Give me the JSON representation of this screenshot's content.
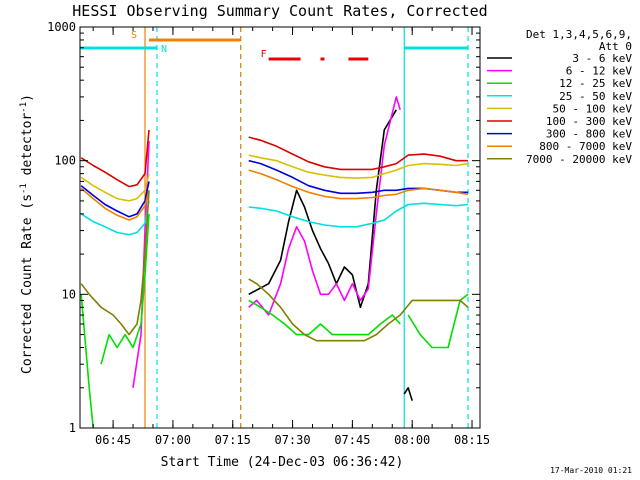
{
  "chart_data": {
    "type": "line",
    "title": "HESSI Observing Summary Count Rates, Corrected",
    "xlabel": "Start Time (24-Dec-03 06:36:42)",
    "ylabel": "Corrected Count Rate (s",
    "ylabel_sup1": "-1",
    "ylabel_mid": " detector",
    "ylabel_sup2": "-1",
    "ylabel_end": ")",
    "footer": "17-Mar-2010 01:21",
    "y_scale": "log",
    "ylim": [
      1,
      1000
    ],
    "xlim": [
      "06:36:42",
      "08:17:00"
    ],
    "x_ticks": [
      "06:45",
      "07:00",
      "07:15",
      "07:30",
      "07:45",
      "08:00",
      "08:15"
    ],
    "y_ticks": [
      "1",
      "10",
      "100",
      "1000"
    ],
    "legend_title": [
      "Det 1,3,4,5,6,9,",
      "Att 0"
    ],
    "legend_position": "right",
    "series": [
      {
        "name": "3 - 6 keV",
        "color": "#000000",
        "segments": [
          [
            [
              "07:19",
              10
            ],
            [
              "07:24",
              12
            ],
            [
              "07:27",
              18
            ],
            [
              "07:29",
              35
            ],
            [
              "07:31",
              60
            ],
            [
              "07:33",
              45
            ],
            [
              "07:35",
              30
            ],
            [
              "07:37",
              22
            ],
            [
              "07:39",
              17
            ],
            [
              "07:41",
              12
            ],
            [
              "07:43",
              16
            ],
            [
              "07:45",
              14
            ],
            [
              "07:47",
              8
            ],
            [
              "07:49",
              12
            ],
            [
              "07:51",
              60
            ],
            [
              "07:53",
              170
            ],
            [
              "07:56",
              240
            ]
          ],
          [
            [
              "07:58",
              1.8
            ],
            [
              "07:59",
              2
            ],
            [
              "08:00",
              1.6
            ]
          ]
        ]
      },
      {
        "name": "6 - 12 keV",
        "color": "#ff00ff",
        "segments": [
          [
            [
              "06:50",
              2
            ],
            [
              "06:52",
              5
            ],
            [
              "06:53",
              30
            ],
            [
              "06:54",
              140
            ]
          ],
          [
            [
              "07:19",
              8
            ],
            [
              "07:21",
              9
            ],
            [
              "07:24",
              7
            ],
            [
              "07:27",
              12
            ],
            [
              "07:29",
              22
            ],
            [
              "07:31",
              32
            ],
            [
              "07:33",
              25
            ],
            [
              "07:35",
              15
            ],
            [
              "07:37",
              10
            ],
            [
              "07:39",
              10
            ],
            [
              "07:41",
              12
            ],
            [
              "07:43",
              9
            ],
            [
              "07:45",
              12
            ],
            [
              "07:47",
              9
            ],
            [
              "07:49",
              11
            ],
            [
              "07:51",
              40
            ],
            [
              "07:53",
              130
            ],
            [
              "07:56",
              300
            ],
            [
              "07:57",
              240
            ]
          ]
        ]
      },
      {
        "name": "12 - 25 keV",
        "color": "#00e000",
        "segments": [
          [
            [
              "06:37",
              10
            ],
            [
              "06:39",
              2
            ],
            [
              "06:40",
              1
            ]
          ],
          [
            [
              "06:42",
              3
            ],
            [
              "06:44",
              5
            ],
            [
              "06:46",
              4
            ],
            [
              "06:48",
              5
            ],
            [
              "06:50",
              4
            ],
            [
              "06:52",
              6
            ],
            [
              "06:53",
              14
            ],
            [
              "06:54",
              40
            ]
          ],
          [
            [
              "07:19",
              9
            ],
            [
              "07:22",
              8
            ],
            [
              "07:25",
              7
            ],
            [
              "07:28",
              6
            ],
            [
              "07:31",
              5
            ],
            [
              "07:34",
              5
            ],
            [
              "07:37",
              6
            ],
            [
              "07:40",
              5
            ],
            [
              "07:43",
              5
            ],
            [
              "07:46",
              5
            ],
            [
              "07:49",
              5
            ],
            [
              "07:52",
              6
            ],
            [
              "07:55",
              7
            ],
            [
              "07:57",
              6
            ]
          ],
          [
            [
              "07:59",
              7
            ],
            [
              "08:02",
              5
            ],
            [
              "08:05",
              4
            ],
            [
              "08:09",
              4
            ],
            [
              "08:12",
              9
            ],
            [
              "08:14",
              10
            ]
          ]
        ]
      },
      {
        "name": "25 - 50 keV",
        "color": "#00e0e0",
        "segments": [
          [
            [
              "06:37",
              40
            ],
            [
              "06:40",
              35
            ],
            [
              "06:43",
              32
            ],
            [
              "06:46",
              29
            ],
            [
              "06:49",
              28
            ],
            [
              "06:51",
              29
            ],
            [
              "06:53",
              34
            ],
            [
              "06:54",
              50
            ]
          ],
          [
            [
              "07:19",
              45
            ],
            [
              "07:22",
              44
            ],
            [
              "07:26",
              42
            ],
            [
              "07:30",
              38
            ],
            [
              "07:34",
              35
            ],
            [
              "07:38",
              33
            ],
            [
              "07:42",
              32
            ],
            [
              "07:46",
              32
            ],
            [
              "07:50",
              34
            ],
            [
              "07:53",
              36
            ],
            [
              "07:56",
              42
            ],
            [
              "07:59",
              47
            ],
            [
              "08:03",
              48
            ],
            [
              "08:07",
              47
            ],
            [
              "08:11",
              46
            ],
            [
              "08:14",
              47
            ]
          ]
        ]
      },
      {
        "name": "50 - 100 keV",
        "color": "#d8c000",
        "segments": [
          [
            [
              "06:37",
              75
            ],
            [
              "06:40",
              65
            ],
            [
              "06:43",
              58
            ],
            [
              "06:46",
              52
            ],
            [
              "06:49",
              50
            ],
            [
              "06:51",
              52
            ],
            [
              "06:53",
              60
            ],
            [
              "06:54",
              80
            ]
          ],
          [
            [
              "07:19",
              110
            ],
            [
              "07:22",
              105
            ],
            [
              "07:26",
              100
            ],
            [
              "07:30",
              90
            ],
            [
              "07:34",
              82
            ],
            [
              "07:38",
              78
            ],
            [
              "07:42",
              75
            ],
            [
              "07:46",
              74
            ],
            [
              "07:50",
              75
            ],
            [
              "07:53",
              80
            ],
            [
              "07:56",
              85
            ],
            [
              "07:59",
              92
            ],
            [
              "08:03",
              95
            ],
            [
              "08:07",
              94
            ],
            [
              "08:11",
              92
            ],
            [
              "08:14",
              95
            ]
          ]
        ]
      },
      {
        "name": "100 - 300 keV",
        "color": "#dd0000",
        "segments": [
          [
            [
              "06:37",
              105
            ],
            [
              "06:40",
              92
            ],
            [
              "06:43",
              82
            ],
            [
              "06:46",
              72
            ],
            [
              "06:49",
              64
            ],
            [
              "06:51",
              66
            ],
            [
              "06:53",
              80
            ],
            [
              "06:54",
              170
            ]
          ],
          [
            [
              "07:19",
              150
            ],
            [
              "07:22",
              142
            ],
            [
              "07:26",
              128
            ],
            [
              "07:30",
              112
            ],
            [
              "07:34",
              98
            ],
            [
              "07:38",
              90
            ],
            [
              "07:42",
              86
            ],
            [
              "07:46",
              86
            ],
            [
              "07:50",
              86
            ],
            [
              "07:53",
              90
            ],
            [
              "07:56",
              95
            ],
            [
              "07:59",
              110
            ],
            [
              "08:03",
              112
            ],
            [
              "08:07",
              108
            ],
            [
              "08:11",
              100
            ],
            [
              "08:14",
              100
            ]
          ]
        ]
      },
      {
        "name": "300 - 800 keV",
        "color": "#0000dd",
        "segments": [
          [
            [
              "06:37",
              65
            ],
            [
              "06:40",
              55
            ],
            [
              "06:43",
              47
            ],
            [
              "06:46",
              42
            ],
            [
              "06:49",
              38
            ],
            [
              "06:51",
              40
            ],
            [
              "06:53",
              50
            ],
            [
              "06:54",
              70
            ]
          ],
          [
            [
              "07:19",
              100
            ],
            [
              "07:22",
              95
            ],
            [
              "07:26",
              85
            ],
            [
              "07:30",
              75
            ],
            [
              "07:34",
              65
            ],
            [
              "07:38",
              60
            ],
            [
              "07:42",
              57
            ],
            [
              "07:46",
              57
            ],
            [
              "07:50",
              58
            ],
            [
              "07:53",
              60
            ],
            [
              "07:56",
              60
            ],
            [
              "07:59",
              62
            ],
            [
              "08:03",
              62
            ],
            [
              "08:07",
              60
            ],
            [
              "08:11",
              58
            ],
            [
              "08:14",
              58
            ]
          ]
        ]
      },
      {
        "name": "800 - 7000 keV",
        "color": "#f08000",
        "segments": [
          [
            [
              "06:37",
              62
            ],
            [
              "06:40",
              52
            ],
            [
              "06:43",
              44
            ],
            [
              "06:46",
              39
            ],
            [
              "06:49",
              36
            ],
            [
              "06:51",
              38
            ],
            [
              "06:53",
              46
            ],
            [
              "06:54",
              60
            ]
          ],
          [
            [
              "07:19",
              85
            ],
            [
              "07:22",
              80
            ],
            [
              "07:26",
              72
            ],
            [
              "07:30",
              64
            ],
            [
              "07:34",
              58
            ],
            [
              "07:38",
              54
            ],
            [
              "07:42",
              52
            ],
            [
              "07:46",
              52
            ],
            [
              "07:50",
              53
            ],
            [
              "07:53",
              55
            ],
            [
              "07:56",
              56
            ],
            [
              "07:59",
              60
            ],
            [
              "08:03",
              62
            ],
            [
              "08:07",
              60
            ],
            [
              "08:11",
              58
            ],
            [
              "08:14",
              56
            ]
          ]
        ]
      },
      {
        "name": "7000 - 20000 keV",
        "color": "#808000",
        "segments": [
          [
            [
              "06:37",
              12
            ],
            [
              "06:39",
              10
            ],
            [
              "06:42",
              8
            ],
            [
              "06:45",
              7
            ],
            [
              "06:47",
              6
            ],
            [
              "06:49",
              5
            ],
            [
              "06:51",
              6
            ],
            [
              "06:52",
              9
            ],
            [
              "06:53",
              20
            ],
            [
              "06:54",
              60
            ]
          ],
          [
            [
              "07:19",
              13
            ],
            [
              "07:21",
              12
            ],
            [
              "07:24",
              10
            ],
            [
              "07:27",
              8
            ],
            [
              "07:30",
              6
            ],
            [
              "07:33",
              5
            ],
            [
              "07:36",
              4.5
            ],
            [
              "07:40",
              4.5
            ],
            [
              "07:44",
              4.5
            ],
            [
              "07:48",
              4.5
            ],
            [
              "07:51",
              5
            ],
            [
              "07:54",
              6
            ],
            [
              "07:57",
              7
            ],
            [
              "08:00",
              9
            ],
            [
              "08:04",
              9
            ],
            [
              "08:08",
              9
            ],
            [
              "08:12",
              9
            ],
            [
              "08:14",
              8
            ]
          ]
        ]
      }
    ],
    "flags": [
      {
        "label": "S",
        "color": "#f08000",
        "segments": [
          [
            "06:54",
            "07:17"
          ]
        ]
      },
      {
        "label": "N",
        "color": "#00e0e0",
        "segments": [
          [
            "06:36:42",
            "06:56"
          ],
          [
            "07:58",
            "08:14"
          ]
        ]
      },
      {
        "label": "F",
        "color": "#ee0000",
        "segments": [
          [
            "07:24",
            "07:32"
          ],
          [
            "07:37",
            "07:38"
          ],
          [
            "07:44",
            "07:49"
          ]
        ]
      }
    ],
    "vertical_markers": [
      {
        "time": "06:53",
        "color": "#f08000",
        "style": "solid"
      },
      {
        "time": "06:56",
        "color": "#00e0e0",
        "style": "dashed"
      },
      {
        "time": "07:17",
        "color": "#d08000",
        "style": "dashed"
      },
      {
        "time": "07:58",
        "color": "#00e0e0",
        "style": "solid"
      },
      {
        "time": "08:14",
        "color": "#00e0e0",
        "style": "dashed"
      }
    ]
  }
}
